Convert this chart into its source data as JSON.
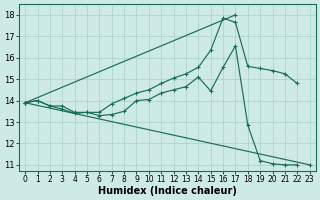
{
  "xlabel": "Humidex (Indice chaleur)",
  "bg_color": "#ceeae6",
  "grid_color": "#aed4cf",
  "line_color": "#1a6b5a",
  "xlim": [
    -0.5,
    23.5
  ],
  "ylim": [
    10.7,
    18.5
  ],
  "yticks": [
    11,
    12,
    13,
    14,
    15,
    16,
    17,
    18
  ],
  "xticks": [
    0,
    1,
    2,
    3,
    4,
    5,
    6,
    7,
    8,
    9,
    10,
    11,
    12,
    13,
    14,
    15,
    16,
    17,
    18,
    19,
    20,
    21,
    22,
    23
  ],
  "series": [
    {
      "x": [
        0,
        17
      ],
      "y": [
        13.9,
        18.0
      ]
    },
    {
      "x": [
        0,
        23
      ],
      "y": [
        13.9,
        11.0
      ]
    },
    {
      "x": [
        0,
        1,
        2,
        3,
        4,
        5,
        6,
        7,
        8,
        9,
        10,
        11,
        12,
        13,
        14,
        15,
        16,
        17,
        18,
        19,
        20,
        21,
        22
      ],
      "y": [
        13.9,
        14.0,
        13.75,
        13.6,
        13.4,
        13.45,
        13.45,
        13.85,
        14.1,
        14.35,
        14.5,
        14.8,
        15.05,
        15.25,
        15.55,
        16.35,
        17.85,
        17.65,
        15.6,
        15.5,
        15.4,
        15.25,
        14.8
      ]
    },
    {
      "x": [
        0,
        1,
        2,
        3,
        4,
        5,
        6,
        7,
        8,
        9,
        10,
        11,
        12,
        13,
        14,
        15,
        16,
        17,
        18,
        19,
        20,
        21,
        22
      ],
      "y": [
        13.9,
        14.0,
        13.75,
        13.75,
        13.45,
        13.45,
        13.3,
        13.35,
        13.5,
        14.0,
        14.05,
        14.35,
        14.5,
        14.65,
        15.1,
        14.45,
        15.55,
        16.55,
        12.85,
        11.2,
        11.05,
        11.0,
        11.0
      ]
    }
  ]
}
